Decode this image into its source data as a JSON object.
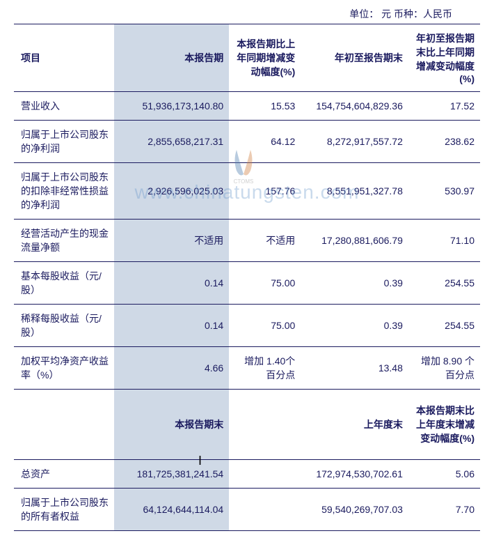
{
  "unit_label": "单位：   元    币种：人民币",
  "headers1": {
    "item": "项目",
    "period": "本报告期",
    "change1": "本报告期比上年同期增减变动幅度(%)",
    "ytd": "年初至报告期末",
    "change2": "年初至报告期末比上年同期增减变动幅度(%)"
  },
  "rows1": [
    {
      "label": "营业收入",
      "period": "51,936,173,140.80",
      "change1": "15.53",
      "ytd": "154,754,604,829.36",
      "change2": "17.52"
    },
    {
      "label": "归属于上市公司股东的净利润",
      "period": "2,855,658,217.31",
      "change1": "64.12",
      "ytd": "8,272,917,557.72",
      "change2": "238.62"
    },
    {
      "label": "归属于上市公司股东的扣除非经常性损益的净利润",
      "period": "2,926,596,025.03",
      "change1": "157.76",
      "ytd": "8,551,951,327.78",
      "change2": "530.97"
    },
    {
      "label": "经营活动产生的现金流量净额",
      "period": "不适用",
      "change1": "不适用",
      "ytd": "17,280,881,606.79",
      "change2": "71.10"
    },
    {
      "label": "基本每股收益（元/股）",
      "period": "0.14",
      "change1": "75.00",
      "ytd": "0.39",
      "change2": "254.55"
    },
    {
      "label": "稀释每股收益（元/股）",
      "period": "0.14",
      "change1": "75.00",
      "ytd": "0.39",
      "change2": "254.55"
    },
    {
      "label": "加权平均净资产收益率（%）",
      "period": "4.66",
      "change1": "增加 1.40个百分点",
      "ytd": "13.48",
      "change2": "增加 8.90 个百分点"
    }
  ],
  "headers2": {
    "period_end": "本报告期末",
    "prev_year_end": "上年度末",
    "change": "本报告期末比上年度末增减变动幅度(%)"
  },
  "rows2": [
    {
      "label": "总资产",
      "period": "181,725,381,241.54",
      "ytd": "172,974,530,702.61",
      "change2": "5.06"
    },
    {
      "label": "归属于上市公司股东的所有者权益",
      "period": "64,124,644,114.04",
      "ytd": "59,540,269,707.03",
      "change2": "7.70"
    }
  ],
  "watermark": "www.chinatungsten.com",
  "colors": {
    "text": "#1a1a5e",
    "highlight_bg": "#cfd9e6",
    "border": "#1a1a5e"
  }
}
